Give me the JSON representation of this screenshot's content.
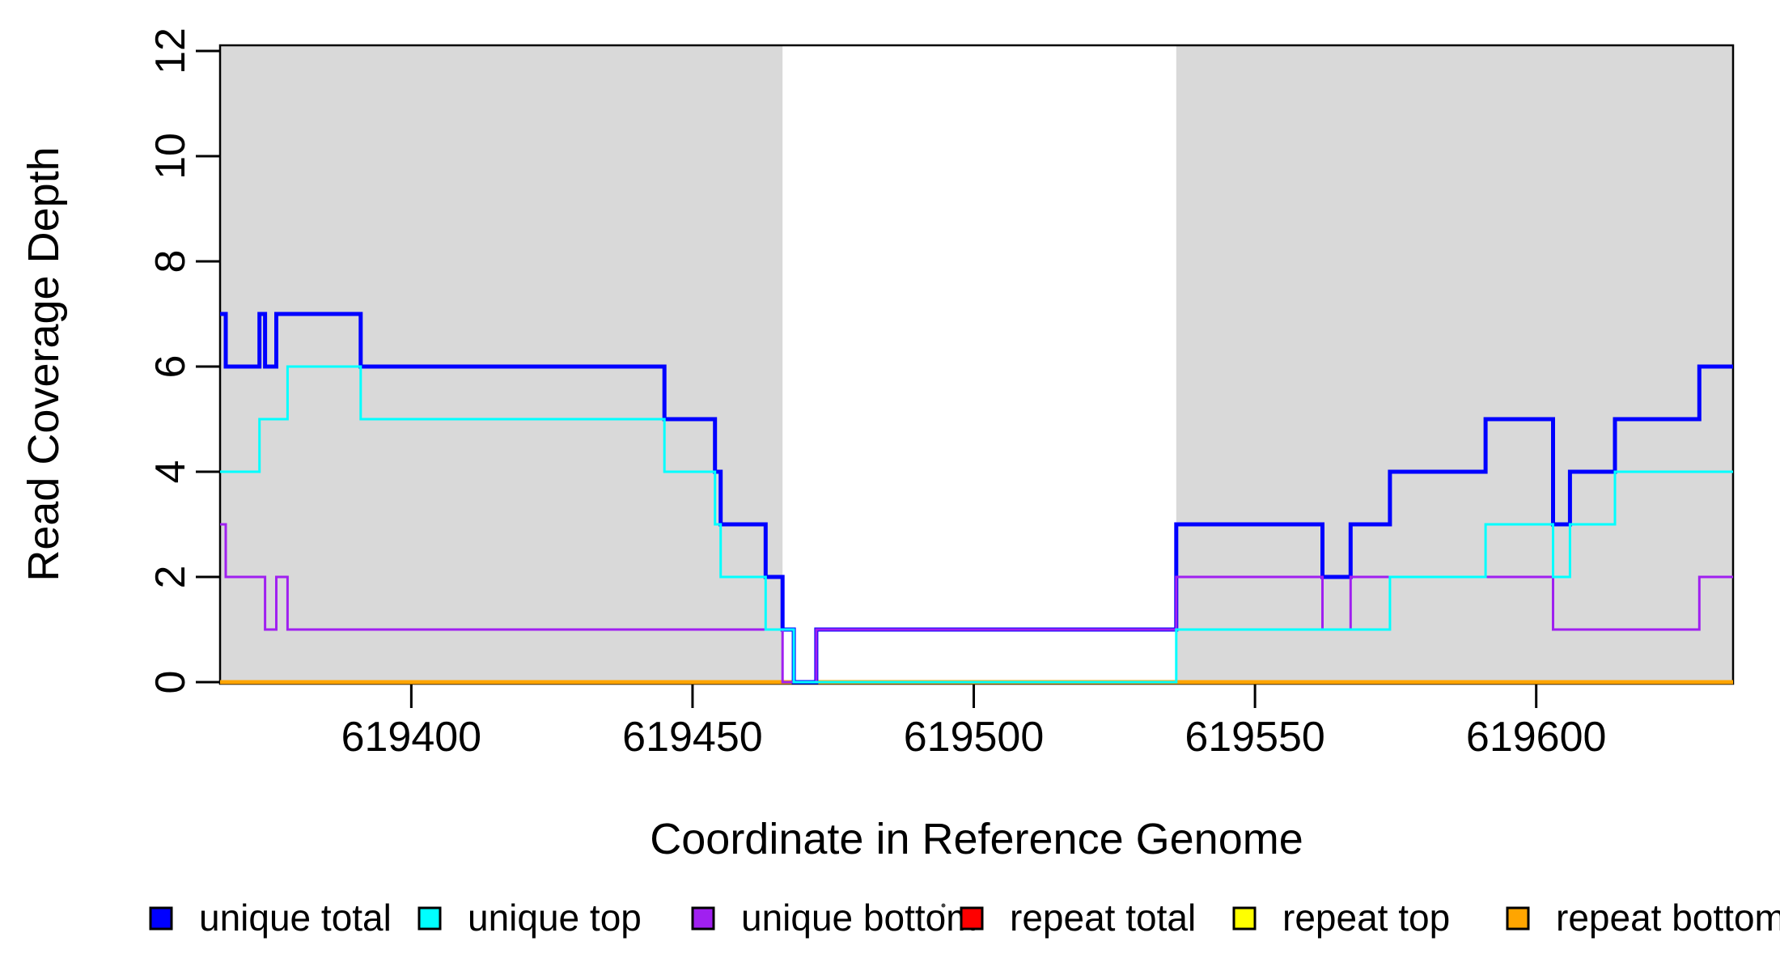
{
  "chart_data": {
    "type": "line",
    "subtype": "step-coverage-plot",
    "title": "",
    "xlabel": "Coordinate in Reference Genome",
    "ylabel": "Read Coverage Depth",
    "xlim": [
      619366,
      619635
    ],
    "ylim": [
      0,
      12
    ],
    "xticks": [
      619400,
      619450,
      619500,
      619550,
      619600
    ],
    "yticks": [
      0,
      2,
      4,
      6,
      8,
      10,
      12
    ],
    "grid": false,
    "legend_position": "bottom",
    "axis_color": "#000000",
    "plot_background": "#ffffff",
    "shaded_bands": [
      {
        "x_from": 619366,
        "x_to": 619466,
        "color": "#d9d9d9"
      },
      {
        "x_from": 619536,
        "x_to": 619635,
        "color": "#d9d9d9"
      }
    ],
    "series": [
      {
        "name": "unique total",
        "color": "#0000ff",
        "line_width": 5,
        "draw_order": 4,
        "steps": [
          [
            619366,
            7
          ],
          [
            619367,
            6
          ],
          [
            619373,
            7
          ],
          [
            619374,
            6
          ],
          [
            619376,
            7
          ],
          [
            619391,
            6
          ],
          [
            619445,
            5
          ],
          [
            619454,
            4
          ],
          [
            619455,
            3
          ],
          [
            619463,
            2
          ],
          [
            619466,
            1
          ],
          [
            619468,
            0
          ],
          [
            619472,
            1
          ],
          [
            619536,
            3
          ],
          [
            619562,
            2
          ],
          [
            619567,
            3
          ],
          [
            619574,
            4
          ],
          [
            619591,
            5
          ],
          [
            619603,
            3
          ],
          [
            619606,
            4
          ],
          [
            619614,
            5
          ],
          [
            619629,
            6
          ]
        ]
      },
      {
        "name": "unique top",
        "color": "#00ffff",
        "line_width": 3,
        "draw_order": 6,
        "steps": [
          [
            619366,
            4
          ],
          [
            619373,
            5
          ],
          [
            619378,
            6
          ],
          [
            619391,
            5
          ],
          [
            619445,
            4
          ],
          [
            619454,
            3
          ],
          [
            619455,
            2
          ],
          [
            619463,
            1
          ],
          [
            619468,
            0
          ],
          [
            619536,
            1
          ],
          [
            619574,
            2
          ],
          [
            619591,
            3
          ],
          [
            619603,
            2
          ],
          [
            619606,
            3
          ],
          [
            619614,
            4
          ]
        ]
      },
      {
        "name": "unique bottom",
        "color": "#a020f0",
        "line_width": 3,
        "draw_order": 5,
        "steps": [
          [
            619366,
            3
          ],
          [
            619367,
            2
          ],
          [
            619374,
            1
          ],
          [
            619376,
            2
          ],
          [
            619378,
            1
          ],
          [
            619466,
            0
          ],
          [
            619472,
            1
          ],
          [
            619536,
            2
          ],
          [
            619562,
            1
          ],
          [
            619567,
            2
          ],
          [
            619603,
            1
          ],
          [
            619629,
            2
          ]
        ]
      },
      {
        "name": "repeat total",
        "color": "#ff0000",
        "line_width": 3,
        "draw_order": 1,
        "steps": [
          [
            619366,
            0
          ]
        ]
      },
      {
        "name": "repeat top",
        "color": "#ffff00",
        "line_width": 3,
        "draw_order": 2,
        "steps": [
          [
            619366,
            0
          ]
        ]
      },
      {
        "name": "repeat bottom",
        "color": "#ffa500",
        "line_width": 5,
        "draw_order": 3,
        "steps": [
          [
            619366,
            0
          ]
        ]
      }
    ]
  }
}
